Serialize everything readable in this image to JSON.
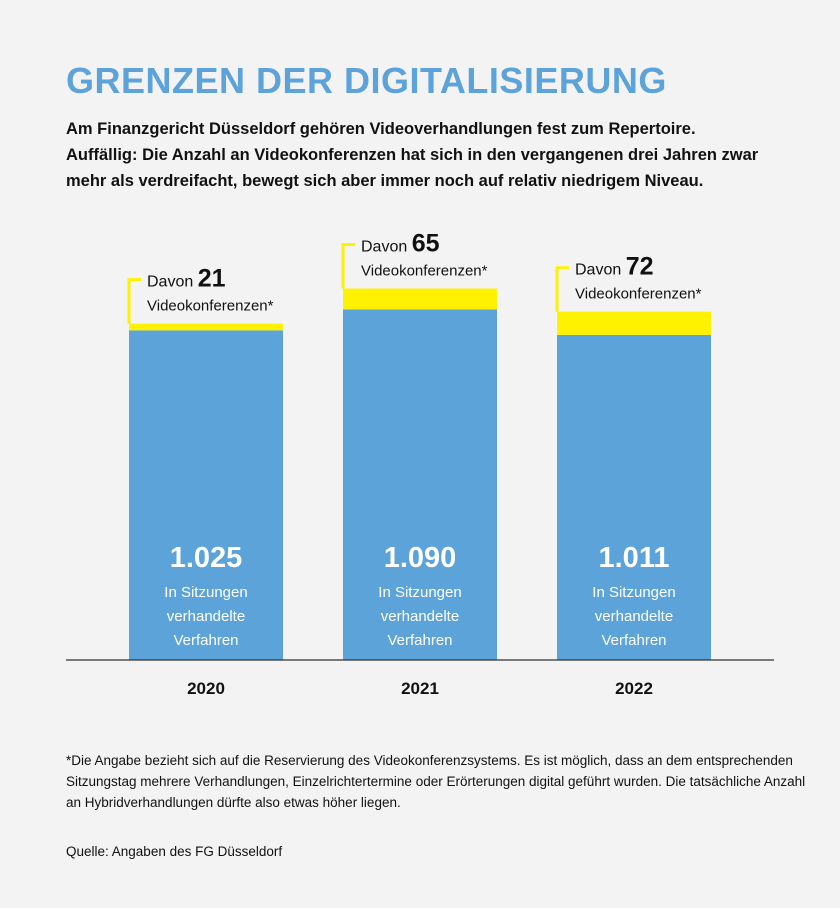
{
  "title": "GRENZEN DER DIGITALISIERUNG",
  "subtitle": [
    "Am Finanzgericht Düsseldorf gehören Videoverhandlungen fest zum Repertoire.",
    "Auffällig: Die Anzahl an Videokonferenzen hat sich in den vergangenen drei Jahren zwar",
    "mehr als verdreifacht, bewegt sich aber immer noch auf relativ niedrigem Niveau."
  ],
  "footnote": [
    "*Die Angabe bezieht sich auf die Reservierung des Videokonferenzsystems. Es ist möglich, dass an dem entsprechenden",
    "Sitzungstag mehrere Verhandlungen, Einzelrichtertermine oder Erörterungen digital geführt wurden. Die tatsächliche Anzahl",
    "an Hybridverhandlungen dürfte also etwas höher liegen."
  ],
  "source": "Quelle: Angaben des FG Düsseldorf",
  "colors": {
    "bar": "#5ba3d9",
    "highlight": "#fff200",
    "text": "#111111",
    "bar_text": "#ffffff",
    "axis": "#333333"
  },
  "chart_data": {
    "type": "bar",
    "stacked": true,
    "categories": [
      "2020",
      "2021",
      "2022"
    ],
    "series": [
      {
        "name": "In Sitzungen verhandelte Verfahren",
        "values": [
          1025,
          1090,
          1011
        ]
      },
      {
        "name": "Videokonferenzen*",
        "values": [
          21,
          65,
          72
        ]
      }
    ],
    "value_labels": [
      "1.025",
      "1.090",
      "1.011"
    ],
    "bar_label_lines": [
      "In Sitzungen",
      "verhandelte",
      "Verfahren"
    ],
    "callout_prefix": "Davon",
    "callout_suffix": "Videokonferenzen*",
    "video_labels": [
      "21",
      "65",
      "72"
    ],
    "ylim": [
      0,
      1100
    ]
  }
}
